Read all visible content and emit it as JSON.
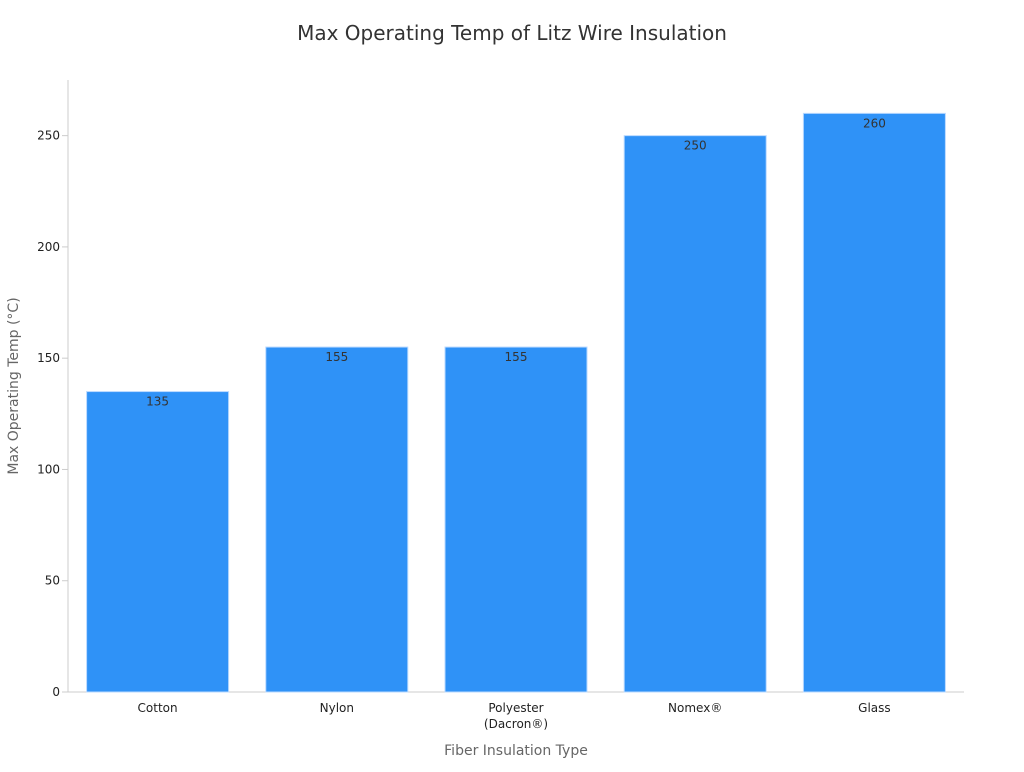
{
  "chart_data": {
    "type": "bar",
    "title": "Max Operating Temp of Litz Wire Insulation",
    "xlabel": "Fiber Insulation Type",
    "ylabel": "Max Operating Temp (°C)",
    "categories": [
      [
        "Cotton"
      ],
      [
        "Nylon"
      ],
      [
        "Polyester",
        "(Dacron®)"
      ],
      [
        "Nomex®"
      ],
      [
        "Glass"
      ]
    ],
    "values": [
      135,
      155,
      155,
      250,
      260
    ],
    "data_labels": [
      "135",
      "155",
      "155",
      "250",
      "260"
    ],
    "ylim": [
      0,
      275
    ],
    "yticks": [
      0,
      50,
      100,
      150,
      200,
      250
    ],
    "ytick_labels": [
      "0",
      "50",
      "100",
      "150",
      "200",
      "250"
    ],
    "grid": false,
    "legend": "none",
    "colors": {
      "bar": "#2f92f7",
      "bar_edge": "#b9d9ff",
      "axis": "#cccccc",
      "title": "#333333",
      "axis_label": "#666666",
      "tick_label": "#222222",
      "data_label": "#333333"
    }
  }
}
